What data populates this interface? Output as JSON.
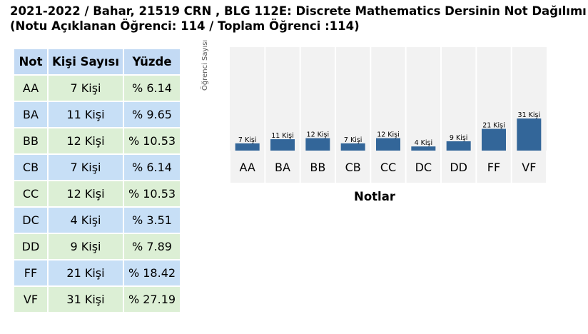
{
  "title": {
    "line1": "2021-2022 / Bahar, 21519 CRN , BLG 112E: Discrete Mathematics Dersinin Not Dağılımı",
    "line2": "(Notu Açıklanan Öğrenci: 114 / Toplam Öğrenci :114)"
  },
  "table": {
    "headers": [
      "Not",
      "Kişi Sayısı",
      "Yüzde"
    ],
    "rows": [
      [
        "AA",
        "7 Kişi",
        "% 6.14"
      ],
      [
        "BA",
        "11 Kişi",
        "% 9.65"
      ],
      [
        "BB",
        "12 Kişi",
        "% 10.53"
      ],
      [
        "CB",
        "7 Kişi",
        "% 6.14"
      ],
      [
        "CC",
        "12 Kişi",
        "% 10.53"
      ],
      [
        "DC",
        "4 Kişi",
        "% 3.51"
      ],
      [
        "DD",
        "9 Kişi",
        "% 7.89"
      ],
      [
        "FF",
        "21 Kişi",
        "% 18.42"
      ],
      [
        "VF",
        "31 Kişi",
        "% 27.19"
      ]
    ]
  },
  "colors": {
    "bar": "#336699",
    "plot_bg": "#f2f2f2",
    "header_bg": "#c3daf4",
    "row_green": "#dcefd5",
    "row_blue": "#c7dff6"
  },
  "chart_data": {
    "type": "bar",
    "categories": [
      "AA",
      "BA",
      "BB",
      "CB",
      "CC",
      "DC",
      "DD",
      "FF",
      "VF"
    ],
    "values": [
      7,
      11,
      12,
      7,
      12,
      4,
      9,
      21,
      31
    ],
    "data_labels": [
      "7 Kişi",
      "11 Kişi",
      "12 Kişi",
      "7 Kişi",
      "12 Kişi",
      "4 Kişi",
      "9 Kişi",
      "21 Kişi",
      "31 Kişi"
    ],
    "xlabel": "Notlar",
    "ylabel": "Öğrenci Sayısı",
    "ylim": [
      0,
      100
    ],
    "grid": false,
    "legend": "none"
  }
}
